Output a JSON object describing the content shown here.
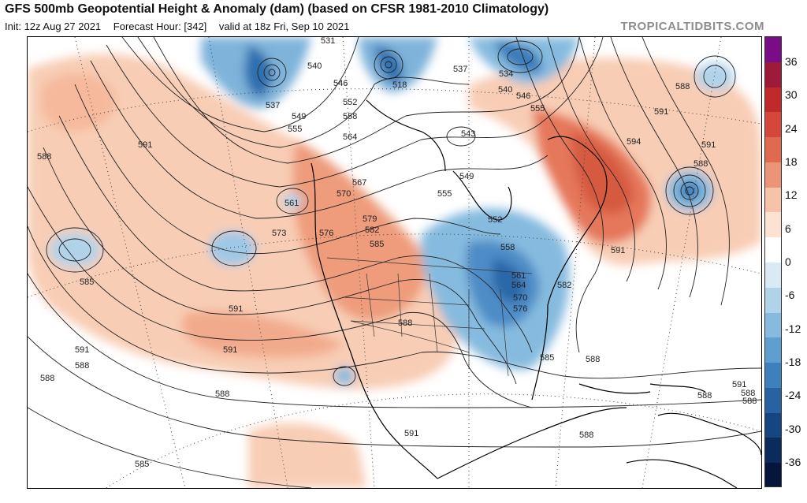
{
  "header": {
    "title": "GFS 500mb Geopotential Height & Anomaly (dam) (based on CFSR 1981-2010 Climatology)",
    "init": "Init: 12z Aug 27 2021",
    "forecast_hour": "Forecast Hour: [342]",
    "valid": "valid at 18z Fri, Sep 10 2021",
    "brand": "TROPICALTIDBITS.COM"
  },
  "colorbar": {
    "ticks": [
      "36",
      "30",
      "24",
      "18",
      "12",
      "6",
      "0",
      "-6",
      "-12",
      "-18",
      "-24",
      "-30",
      "-36"
    ],
    "colors": [
      "#7a0c88",
      "#9e1a3a",
      "#c02a2a",
      "#d5473a",
      "#e06a50",
      "#ec9476",
      "#f6c2a8",
      "#fbe2d3",
      "#ffffff",
      "#d9eaf5",
      "#b0d3ea",
      "#86bbdf",
      "#5e9fd0",
      "#3e80bd",
      "#2862a3",
      "#164681",
      "#0b2b5c",
      "#06163a"
    ]
  },
  "map": {
    "height_labels": [
      "531",
      "540",
      "546",
      "552",
      "558",
      "564",
      "567",
      "570",
      "573",
      "576",
      "579",
      "582",
      "585",
      "591",
      "561",
      "555",
      "549",
      "537",
      "518",
      "537",
      "534",
      "540",
      "546",
      "555",
      "543",
      "549",
      "555",
      "591",
      "594",
      "588",
      "591",
      "588",
      "591",
      "588",
      "552",
      "558",
      "561",
      "564",
      "570",
      "576",
      "582",
      "585",
      "588",
      "588",
      "591",
      "588",
      "588",
      "585",
      "588",
      "591",
      "591",
      "588",
      "585",
      "588",
      "591",
      "588",
      "591",
      "588"
    ]
  }
}
